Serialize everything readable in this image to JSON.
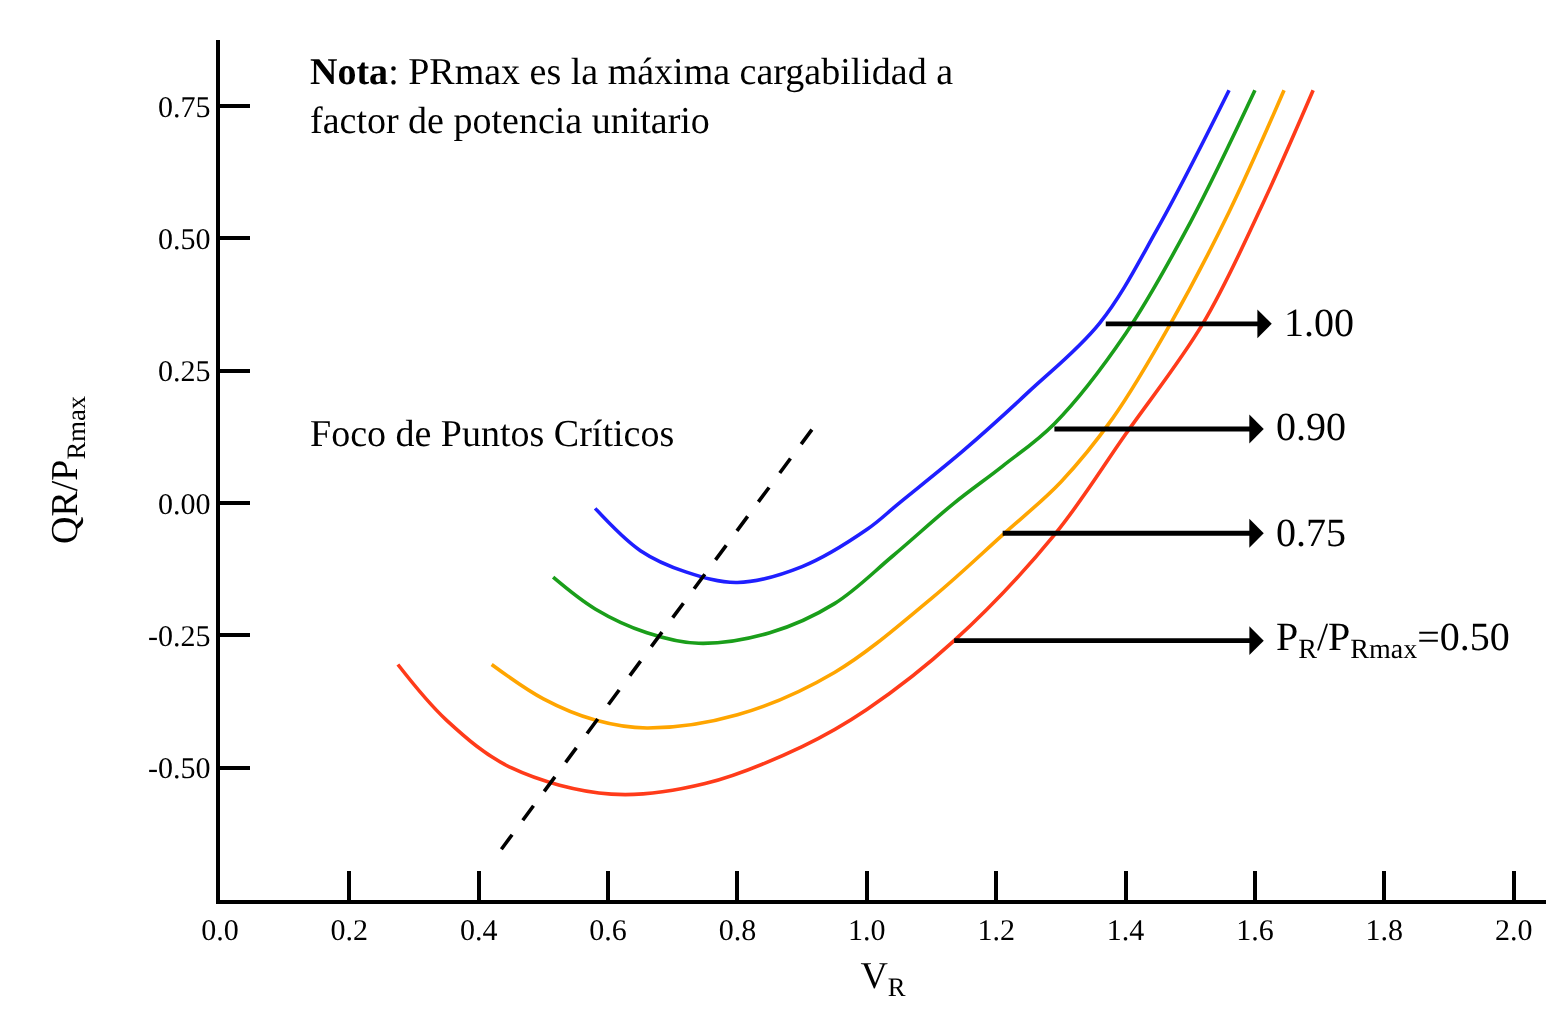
{
  "chart_data": {
    "type": "line",
    "xlabel": "V$_{R}$",
    "ylabel": "QR/P$_{Rmax}$",
    "xlim": [
      0,
      2.05
    ],
    "ylim": [
      -0.75,
      0.875
    ],
    "xticks": [
      {
        "value": 0,
        "label": "0.0"
      },
      {
        "value": 0.2,
        "label": "0.2"
      },
      {
        "value": 0.4,
        "label": "0.4"
      },
      {
        "value": 0.6,
        "label": "0.6"
      },
      {
        "value": 0.8,
        "label": "0.8"
      },
      {
        "value": 1.0,
        "label": "1.0"
      },
      {
        "value": 1.2,
        "label": "1.2"
      },
      {
        "value": 1.4,
        "label": "1.4"
      },
      {
        "value": 1.6,
        "label": "1.6"
      },
      {
        "value": 1.8,
        "label": "1.8"
      },
      {
        "value": 2.0,
        "label": "2.0"
      }
    ],
    "yticks": [
      {
        "value": -0.5,
        "label": "-0.50"
      },
      {
        "value": -0.25,
        "label": "-0.25"
      },
      {
        "value": 0,
        "label": "0.00"
      },
      {
        "value": 0.25,
        "label": "0.25"
      },
      {
        "value": 0.5,
        "label": "0.50"
      },
      {
        "value": 0.75,
        "label": "0.75"
      }
    ],
    "marker": "none",
    "line_style": "solid",
    "series": [
      {
        "color": "#1f1fff",
        "x": [
          0.58,
          0.65,
          0.72,
          0.8,
          0.9,
          1.0,
          1.05,
          1.15,
          1.25,
          1.36,
          1.45,
          1.56
        ],
        "values": [
          -0.01,
          -0.09,
          -0.13,
          -0.15,
          -0.12,
          -0.05,
          0.0,
          0.1,
          0.21,
          0.34,
          0.52,
          0.78
        ]
      },
      {
        "color": "#1a9e1a",
        "x": [
          0.515,
          0.58,
          0.66,
          0.74,
          0.85,
          0.95,
          1.04,
          1.135,
          1.21,
          1.29,
          1.4,
          1.5,
          1.6
        ],
        "values": [
          -0.14,
          -0.2,
          -0.245,
          -0.265,
          -0.245,
          -0.19,
          -0.1,
          0.0,
          0.07,
          0.15,
          0.32,
          0.53,
          0.78
        ]
      },
      {
        "color": "#ffa500",
        "x": [
          0.42,
          0.5,
          0.58,
          0.66,
          0.8,
          0.95,
          1.1,
          1.21,
          1.3,
          1.38,
          1.47,
          1.56,
          1.645
        ],
        "values": [
          -0.305,
          -0.37,
          -0.41,
          -0.425,
          -0.4,
          -0.32,
          -0.18,
          -0.06,
          0.04,
          0.16,
          0.34,
          0.55,
          0.78
        ]
      },
      {
        "color": "#ff3b1a",
        "x": [
          0.275,
          0.35,
          0.45,
          0.605,
          0.75,
          0.9,
          1.0,
          1.135,
          1.29,
          1.4,
          1.52,
          1.61,
          1.69
        ],
        "values": [
          -0.305,
          -0.41,
          -0.5,
          -0.55,
          -0.53,
          -0.46,
          -0.39,
          -0.26,
          -0.06,
          0.13,
          0.34,
          0.56,
          0.78
        ]
      },
      {
        "color": "#000000",
        "line_style": "dashed",
        "x": [
          0.435,
          0.92
        ],
        "values": [
          -0.654,
          0.147
        ]
      }
    ],
    "annotations": [
      "Nota: PRmax es la máxima cargabilidad a\nfactor de potencia unitario",
      "Foco de Puntos Críticos",
      "1.00",
      {
        "text": "0.90",
        "x": 1.29,
        "y": 0.14
      },
      {
        "text": "0.75",
        "x": 1.21,
        "y": -0.057
      },
      {
        "text": "P$_{R}$/P$_{Rmax}$=0.50",
        "x": 1.135,
        "y": -0.26
      }
    ]
  }
}
